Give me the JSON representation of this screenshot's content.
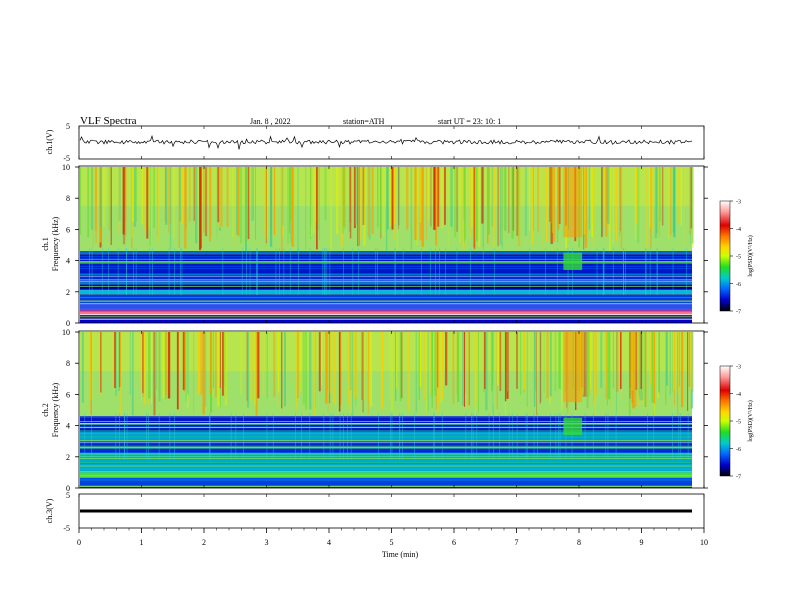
{
  "header": {
    "title": "VLF  Spectra",
    "date": "Jan.  8  , 2022",
    "station": "station=ATH",
    "start": "start  UT  =   23: 10: 1"
  },
  "chart_data": [
    {
      "type": "line",
      "panel": "ch1-waveform",
      "ylabel": "ch.1(V)",
      "ylim": [
        -5,
        5
      ],
      "yticks": [
        5,
        -5
      ],
      "series": [
        {
          "values": "continuous noisy trace centered near 0 V, excursions to about ±1.5 V"
        }
      ],
      "color": "#000000"
    },
    {
      "type": "heatmap",
      "panel": "ch1-spectrogram",
      "ylabel": "ch.1\nFrequency  (kHz)",
      "ylim": [
        0,
        10
      ],
      "yticks": [
        "0",
        "2",
        "4",
        "6",
        "8",
        "10"
      ],
      "colorbar": {
        "label": "log(PSD)(V²/Hz)",
        "ticks": [
          "-3",
          "-4",
          "-5",
          "-6",
          "-7"
        ]
      }
    },
    {
      "type": "heatmap",
      "panel": "ch2-spectrogram",
      "ylabel": "ch.2\nFrequency  (kHz)",
      "ylim": [
        0,
        10
      ],
      "yticks": [
        "0",
        "2",
        "4",
        "6",
        "8",
        "10"
      ],
      "colorbar": {
        "label": "log(PSD)(V²/Hz)",
        "ticks": [
          "-3",
          "-4",
          "-5",
          "-6",
          "-7"
        ]
      }
    },
    {
      "type": "line",
      "panel": "ch3-waveform",
      "ylabel": "ch.3(V)",
      "ylim": [
        -5,
        5
      ],
      "yticks": [
        5,
        -5
      ],
      "series": [
        {
          "values": "flat thick trace at about -1 V"
        }
      ],
      "color": "#000000"
    }
  ],
  "xaxis": {
    "xlabel": "Time  (min)",
    "xlim": [
      0,
      10
    ],
    "ticks": [
      "0",
      "1",
      "2",
      "3",
      "4",
      "5",
      "6",
      "7",
      "8",
      "9",
      "10"
    ]
  },
  "colormap": [
    "#ffffff",
    "#ff8c8c",
    "#dd0000",
    "#ff7700",
    "#ffd700",
    "#ccff00",
    "#33dd33",
    "#00cccc",
    "#0066ff",
    "#0000dd",
    "#000066",
    "#000000"
  ]
}
